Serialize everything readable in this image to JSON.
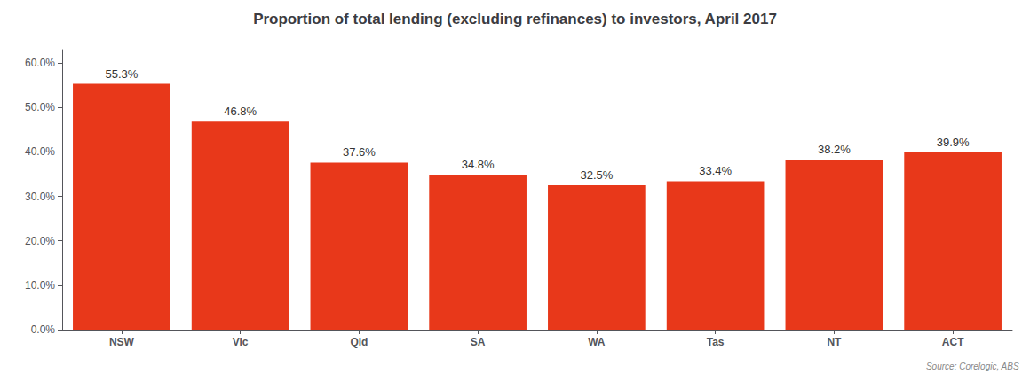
{
  "chart_data": {
    "type": "bar",
    "title": "Proportion of total lending (excluding refinances) to investors, April 2017",
    "categories": [
      "NSW",
      "Vic",
      "Qld",
      "SA",
      "WA",
      "Tas",
      "NT",
      "ACT"
    ],
    "values": [
      55.3,
      46.8,
      37.6,
      34.8,
      32.5,
      33.4,
      38.2,
      39.9
    ],
    "value_labels": [
      "55.3%",
      "46.8%",
      "37.6%",
      "34.8%",
      "32.5%",
      "33.4%",
      "38.2%",
      "39.9%"
    ],
    "data_labels": true,
    "color": "#E8381A",
    "ylim": [
      0,
      63
    ],
    "yticks": [
      {
        "value": 0,
        "label": "0.0%"
      },
      {
        "value": 10,
        "label": "10.0%"
      },
      {
        "value": 20,
        "label": "20.0%"
      },
      {
        "value": 30,
        "label": "30.0%"
      },
      {
        "value": 40,
        "label": "40.0%"
      },
      {
        "value": 50,
        "label": "50.0%"
      },
      {
        "value": 60,
        "label": "60.0%"
      }
    ],
    "grid": false,
    "annotations": [
      "Source: Corelogic, ABS"
    ]
  }
}
